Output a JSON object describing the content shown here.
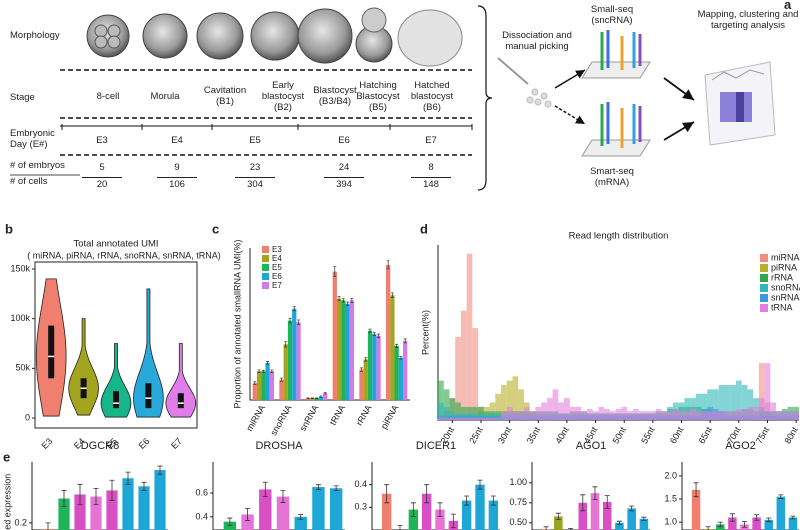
{
  "panel_a": {
    "label": "a",
    "row_labels": [
      "Morphology",
      "Stage",
      "Embryonic Day (E#)",
      "# of embryos",
      "# of cells"
    ],
    "stages": [
      "8-cell",
      "Morula",
      "Cavitation (B1)",
      "Early blastocyst (B2)",
      "Blastocyst (B3/B4)",
      "Hatching Blastocyst (B5)",
      "Hatched blastocyst (B6)"
    ],
    "days": [
      "E3",
      "E4",
      "E5",
      "E6",
      "E7"
    ],
    "embryos": [
      5,
      9,
      23,
      24,
      8
    ],
    "cells": [
      20,
      106,
      304,
      394,
      148
    ],
    "dissociation": "Dissociation and manual picking",
    "small_seq": "Small-seq (sncRNA)",
    "smart_seq": "Smart-seq (mRNA)",
    "analysis": "Mapping, clustering and targeting analysis"
  },
  "chart_data": [
    {
      "type": "violin",
      "panel": "b",
      "title": "Total annotated UMI",
      "subtitle": "( miRNA, piRNA, rRNA, snoRNA, snRNA, tRNA)",
      "categories": [
        "E3",
        "E4",
        "E5",
        "E6",
        "E7"
      ],
      "colors": [
        "#f07f6f",
        "#a3a51f",
        "#16b58a",
        "#27a9dc",
        "#e07de8"
      ],
      "min": [
        2000,
        3000,
        1000,
        1000,
        1000
      ],
      "q1": [
        40000,
        20000,
        10000,
        10000,
        10000
      ],
      "median": [
        62000,
        30000,
        15000,
        20000,
        15000
      ],
      "q3": [
        93000,
        40000,
        27000,
        35000,
        25000
      ],
      "max": [
        140000,
        100000,
        75000,
        130000,
        75000
      ],
      "ylim": [
        -10000,
        157000
      ],
      "yticks": [
        0,
        {
          "value": 50000,
          "label": "50k"
        },
        {
          "value": 100000,
          "label": "100k"
        },
        {
          "value": 150000,
          "label": "150k"
        }
      ]
    },
    {
      "type": "bar",
      "panel": "c",
      "y_label": "Proportion of annotated smallRNA UMI(%)",
      "categories": [
        "miRNA",
        "snoRNA",
        "snRNA",
        "tRNA",
        "rRNA",
        "piRNA"
      ],
      "ylim": [
        0,
        45
      ],
      "series": [
        {
          "name": "E3",
          "color": "#f07f6f",
          "values": [
            5,
            6,
            0.5,
            38,
            9,
            40
          ],
          "errors": [
            0.4,
            0.5,
            0.1,
            1.5,
            0.5,
            1.2
          ]
        },
        {
          "name": "E4",
          "color": "#a3a51f",
          "values": [
            8.5,
            16.5,
            0.5,
            30,
            12,
            31
          ],
          "errors": [
            0.4,
            0.8,
            0.1,
            0.6,
            0.5,
            0.7
          ]
        },
        {
          "name": "E5",
          "color": "#1fb35a",
          "values": [
            8.5,
            23.5,
            0.5,
            29.5,
            20.5,
            16
          ],
          "errors": [
            0.3,
            0.7,
            0.1,
            0.5,
            0.5,
            0.5
          ]
        },
        {
          "name": "E6",
          "color": "#1ea7d6",
          "values": [
            11,
            27,
            1,
            28.5,
            19.5,
            12.5
          ],
          "errors": [
            0.4,
            0.6,
            0.2,
            0.5,
            0.4,
            0.4
          ]
        },
        {
          "name": "E7",
          "color": "#d07ce8",
          "values": [
            8.5,
            23,
            2,
            29.5,
            19,
            17.5
          ],
          "errors": [
            0.4,
            0.7,
            0.2,
            0.6,
            0.5,
            0.6
          ]
        }
      ]
    },
    {
      "type": "bar",
      "panel": "d",
      "title": "Read length distribution",
      "y_label": "Percent(%)",
      "x": [
        18,
        19,
        20,
        21,
        22,
        23,
        24,
        25,
        26,
        27,
        28,
        29,
        30,
        31,
        32,
        33,
        34,
        35,
        36,
        37,
        38,
        39,
        40,
        41,
        42,
        43,
        44,
        45,
        46,
        47,
        48,
        49,
        50,
        51,
        52,
        53,
        54,
        55,
        56,
        57,
        58,
        59,
        60,
        61,
        62,
        63,
        64,
        65,
        66,
        67,
        68,
        69,
        70,
        71,
        72,
        73,
        74,
        75,
        76,
        77,
        78,
        79,
        80
      ],
      "xlim": [
        17.5,
        80.5
      ],
      "ylim": [
        0,
        40
      ],
      "xticks": [
        {
          "value": 20,
          "label": "20nt"
        },
        {
          "value": 25,
          "label": "25nt"
        },
        {
          "value": 30,
          "label": "30nt"
        },
        {
          "value": 35,
          "label": "35nt"
        },
        {
          "value": 40,
          "label": "40nt"
        },
        {
          "value": 45,
          "label": "45nt"
        },
        {
          "value": 50,
          "label": "50nt"
        },
        {
          "value": 55,
          "label": "55nt"
        },
        {
          "value": 60,
          "label": "60nt"
        },
        {
          "value": 65,
          "label": "65nt"
        },
        {
          "value": 70,
          "label": "70nt"
        },
        {
          "value": 75,
          "label": "75nt"
        },
        {
          "value": 80,
          "label": "80nt"
        }
      ],
      "series": [
        {
          "name": "miRNA",
          "color": "#f08f80",
          "values": [
            0.5,
            2,
            5,
            19,
            25,
            38,
            21,
            3,
            1,
            0.5,
            0.3,
            0.3,
            0.3,
            0.3,
            0.3,
            0.3,
            0.3,
            0.3,
            0.3,
            0.3,
            0.3,
            0.3,
            0.3,
            0.3,
            0.3,
            0.3,
            0.3,
            0.3,
            0.3,
            0.3,
            0.3,
            0.3,
            0.3,
            0.3,
            0.3,
            0.3,
            0.3,
            0.3,
            0.3,
            0.3,
            0.3,
            0.3,
            0.3,
            0.3,
            0.3,
            0.3,
            0.3,
            0.3,
            0.3,
            0.3,
            0.3,
            0.3,
            0.3,
            0.3,
            0.3,
            0.3,
            13,
            4,
            1,
            0.3,
            0.3,
            0.3,
            0.3
          ]
        },
        {
          "name": "piRNA",
          "color": "#b8b02a",
          "values": [
            0.5,
            0.5,
            0.5,
            0.5,
            0.5,
            0.5,
            0.5,
            2,
            3,
            4,
            6,
            8,
            9,
            10,
            7,
            4,
            2,
            1,
            1,
            1,
            1,
            1,
            1,
            1,
            1,
            1,
            1,
            1,
            1,
            1,
            1,
            1,
            1,
            1,
            1,
            1,
            1,
            1,
            1,
            1,
            1,
            1,
            1,
            1,
            1,
            1,
            1,
            1,
            1,
            1,
            1,
            1,
            1,
            1,
            1,
            1,
            1,
            1,
            1,
            1,
            1,
            1,
            1
          ]
        },
        {
          "name": "rRNA",
          "color": "#2ea84a",
          "values": [
            9,
            7,
            5,
            4,
            3,
            3,
            3,
            3,
            2,
            2,
            2,
            2,
            2,
            2,
            2,
            2,
            2,
            2,
            2,
            2,
            2,
            1.5,
            1.5,
            2,
            2,
            2,
            1.5,
            1.5,
            1.5,
            1.5,
            1.5,
            1.5,
            1.5,
            1.5,
            1.5,
            1.5,
            1.5,
            1.5,
            2,
            2,
            2.5,
            2.5,
            3,
            3,
            3,
            3,
            2.5,
            2.5,
            2,
            2,
            2,
            2,
            2,
            2.5,
            2.5,
            2,
            2,
            2,
            2,
            2,
            2.5,
            3,
            3
          ]
        },
        {
          "name": "snoRNA",
          "color": "#30b8b8",
          "values": [
            4,
            3,
            2,
            1.5,
            1.5,
            1.5,
            1.5,
            1.5,
            1.5,
            1.5,
            1.5,
            1.5,
            1.5,
            1.5,
            1.5,
            1.5,
            1.5,
            1.5,
            1.5,
            1.5,
            1.5,
            1.5,
            1.5,
            1.5,
            1.5,
            1.5,
            1.5,
            1.5,
            1.5,
            1.5,
            1.5,
            1.5,
            1.5,
            1.5,
            1.5,
            1.5,
            1.5,
            1.5,
            1.5,
            1.5,
            3,
            4,
            4,
            5,
            5,
            6,
            6,
            7,
            7,
            8,
            8,
            8,
            9,
            8,
            7,
            5,
            3,
            2,
            2,
            2,
            2,
            2,
            2
          ]
        },
        {
          "name": "snRNA",
          "color": "#3a9ae0",
          "values": [
            1,
            1,
            1,
            1,
            1,
            1,
            1,
            1,
            1,
            1,
            1,
            1,
            1,
            1,
            1,
            1,
            1,
            1,
            1,
            1,
            1,
            1,
            1,
            1,
            1,
            1,
            1,
            1,
            1,
            1,
            1,
            1,
            1,
            1,
            1,
            1,
            1,
            1,
            1,
            1,
            1,
            1,
            1,
            1,
            1,
            1,
            2.5,
            3,
            2.5,
            2,
            1,
            1,
            1,
            1,
            1,
            1,
            1,
            1,
            1,
            1,
            1,
            1,
            1
          ]
        },
        {
          "name": "tRNA",
          "color": "#e27ee0",
          "values": [
            0.5,
            0.5,
            0.5,
            0.5,
            0.5,
            0.5,
            0.5,
            0.5,
            0.5,
            0.5,
            0.5,
            2,
            3,
            2,
            2,
            3,
            2,
            3,
            4,
            5,
            7,
            4,
            5,
            3,
            3,
            2,
            2.5,
            2,
            3,
            2.5,
            2,
            2.5,
            3,
            2,
            2.5,
            2,
            2,
            2,
            2.5,
            2,
            2,
            2.5,
            2,
            2,
            2.5,
            2,
            2,
            2,
            2,
            2,
            2,
            2,
            2.5,
            2.5,
            3,
            3,
            5,
            13,
            4,
            2,
            2,
            2,
            2
          ]
        }
      ]
    },
    {
      "type": "bar",
      "panel": "e",
      "y_label": "ized expression",
      "title": "DGCR8",
      "values": [
        0.17,
        0.32,
        0.34,
        0.33,
        0.36,
        0.42,
        0.38,
        0.46
      ],
      "errors": [
        0.03,
        0.04,
        0.05,
        0.04,
        0.05,
        0.03,
        0.02,
        0.02
      ],
      "colors": [
        "#f07f6f",
        "#1fb35a",
        "#d94fc4",
        "#e673d6",
        "#d94fc4",
        "#1ea7d6",
        "#1ea7d6",
        "#1ea7d6"
      ],
      "ylim": [
        0.165,
        0.5
      ],
      "yticks": [
        0.2
      ]
    },
    {
      "type": "bar",
      "title": "DROSHA",
      "values": [
        0.36,
        0.42,
        0.63,
        0.57,
        0.4,
        0.65,
        0.64
      ],
      "errors": [
        0.03,
        0.05,
        0.06,
        0.05,
        0.02,
        0.02,
        0.02
      ],
      "colors": [
        "#1fb35a",
        "#e673d6",
        "#d94fc4",
        "#e673d6",
        "#1ea7d6",
        "#1ea7d6",
        "#1ea7d6"
      ],
      "ylim": [
        0.29,
        0.86
      ],
      "yticks": [
        0.4,
        0.6
      ]
    },
    {
      "type": "bar",
      "title": "DICER1",
      "values": [
        0.36,
        0.2,
        0.29,
        0.36,
        0.29,
        0.24,
        0.33,
        0.4,
        0.33
      ],
      "errors": [
        0.04,
        0.02,
        0.03,
        0.04,
        0.03,
        0.03,
        0.02,
        0.02,
        0.02
      ],
      "colors": [
        "#f07f6f",
        "#9aa51f",
        "#1fb35a",
        "#d94fc4",
        "#e673d6",
        "#d94fc4",
        "#1ea7d6",
        "#1ea7d6",
        "#1ea7d6"
      ],
      "ylim": [
        0.2,
        0.5
      ],
      "yticks": [
        0.3,
        0.4
      ]
    },
    {
      "type": "bar",
      "title": "AGO1",
      "values": [
        0.42,
        0.58,
        0.4,
        0.75,
        0.87,
        0.76,
        0.5,
        0.68,
        0.55
      ],
      "errors": [
        0.03,
        0.04,
        0.03,
        0.1,
        0.08,
        0.08,
        0.02,
        0.03,
        0.02
      ],
      "colors": [
        "#f07f6f",
        "#9aa51f",
        "#1fb35a",
        "#d94fc4",
        "#e673d6",
        "#d94fc4",
        "#1ea7d6",
        "#1ea7d6",
        "#1ea7d6"
      ],
      "ylim": [
        0.41,
        1.26
      ],
      "yticks": [
        {
          "value": 0.5,
          "label": "0.50"
        },
        {
          "value": 0.75,
          "label": "0.75"
        },
        {
          "value": 1,
          "label": "1.00"
        }
      ]
    },
    {
      "type": "bar",
      "title": "AGO2",
      "values": [
        1.7,
        0.85,
        0.95,
        1.1,
        0.95,
        1.1,
        1.05,
        1.55,
        1.1
      ],
      "errors": [
        0.15,
        0.05,
        0.05,
        0.08,
        0.06,
        0.06,
        0.04,
        0.04,
        0.03
      ],
      "colors": [
        "#f07f6f",
        "#9aa51f",
        "#1fb35a",
        "#d94fc4",
        "#e673d6",
        "#d94fc4",
        "#1ea7d6",
        "#1ea7d6",
        "#1ea7d6"
      ],
      "ylim": [
        0.83,
        2.3
      ],
      "yticks": [
        {
          "value": 1,
          "label": "1.0"
        },
        {
          "value": 1.5,
          "label": "1.5"
        },
        {
          "value": 2,
          "label": "2.0"
        }
      ]
    }
  ]
}
